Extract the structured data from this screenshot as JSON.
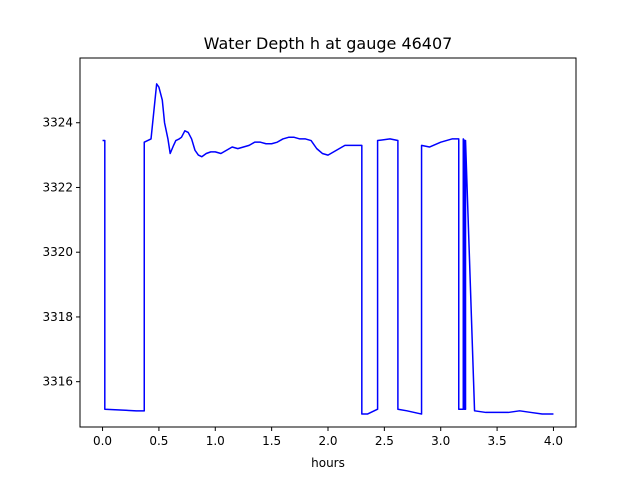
{
  "chart_data": {
    "type": "line",
    "title": "Water Depth h at gauge 46407",
    "xlabel": "hours",
    "ylabel": "",
    "xlim": [
      -0.2,
      4.2
    ],
    "ylim": [
      3314.6,
      3326.0
    ],
    "xticks": [
      0.0,
      0.5,
      1.0,
      1.5,
      2.0,
      2.5,
      3.0,
      3.5,
      4.0
    ],
    "xtick_labels": [
      "0.0",
      "0.5",
      "1.0",
      "1.5",
      "2.0",
      "2.5",
      "3.0",
      "3.5",
      "4.0"
    ],
    "yticks": [
      3316,
      3318,
      3320,
      3322,
      3324
    ],
    "ytick_labels": [
      "3316",
      "3318",
      "3320",
      "3322",
      "3324"
    ],
    "grid": false,
    "series": [
      {
        "color": "#0000ff",
        "x": [
          0.0,
          0.02,
          0.02,
          0.3,
          0.37,
          0.37,
          0.43,
          0.48,
          0.5,
          0.53,
          0.55,
          0.58,
          0.6,
          0.63,
          0.65,
          0.68,
          0.7,
          0.73,
          0.76,
          0.79,
          0.82,
          0.85,
          0.88,
          0.92,
          0.96,
          1.0,
          1.05,
          1.1,
          1.15,
          1.2,
          1.25,
          1.3,
          1.35,
          1.4,
          1.45,
          1.5,
          1.55,
          1.6,
          1.65,
          1.7,
          1.75,
          1.8,
          1.85,
          1.9,
          1.95,
          2.0,
          2.05,
          2.1,
          2.15,
          2.2,
          2.3,
          2.3,
          2.35,
          2.44,
          2.44,
          2.55,
          2.62,
          2.62,
          2.7,
          2.83,
          2.83,
          2.9,
          3.0,
          3.1,
          3.16,
          3.16,
          3.2,
          3.2,
          3.21,
          3.21,
          3.22,
          3.22,
          3.3,
          3.4,
          3.5,
          3.6,
          3.7,
          3.8,
          3.9,
          4.0
        ],
        "y": [
          3323.45,
          3323.45,
          3315.15,
          3315.1,
          3315.1,
          3323.4,
          3323.5,
          3325.2,
          3325.1,
          3324.7,
          3324.0,
          3323.5,
          3323.05,
          3323.3,
          3323.45,
          3323.5,
          3323.55,
          3323.75,
          3323.7,
          3323.5,
          3323.15,
          3323.0,
          3322.95,
          3323.05,
          3323.1,
          3323.1,
          3323.05,
          3323.15,
          3323.25,
          3323.2,
          3323.25,
          3323.3,
          3323.4,
          3323.4,
          3323.35,
          3323.35,
          3323.4,
          3323.5,
          3323.55,
          3323.55,
          3323.5,
          3323.5,
          3323.45,
          3323.2,
          3323.05,
          3323.0,
          3323.1,
          3323.2,
          3323.3,
          3323.3,
          3323.3,
          3315.0,
          3315.0,
          3315.15,
          3323.45,
          3323.5,
          3323.45,
          3315.15,
          3315.1,
          3315.0,
          3323.3,
          3323.25,
          3323.4,
          3323.5,
          3323.5,
          3315.15,
          3315.15,
          3323.5,
          3323.45,
          3315.15,
          3315.15,
          3323.45,
          3315.1,
          3315.05,
          3315.05,
          3315.05,
          3315.1,
          3315.05,
          3315.0,
          3315.0
        ]
      }
    ]
  }
}
